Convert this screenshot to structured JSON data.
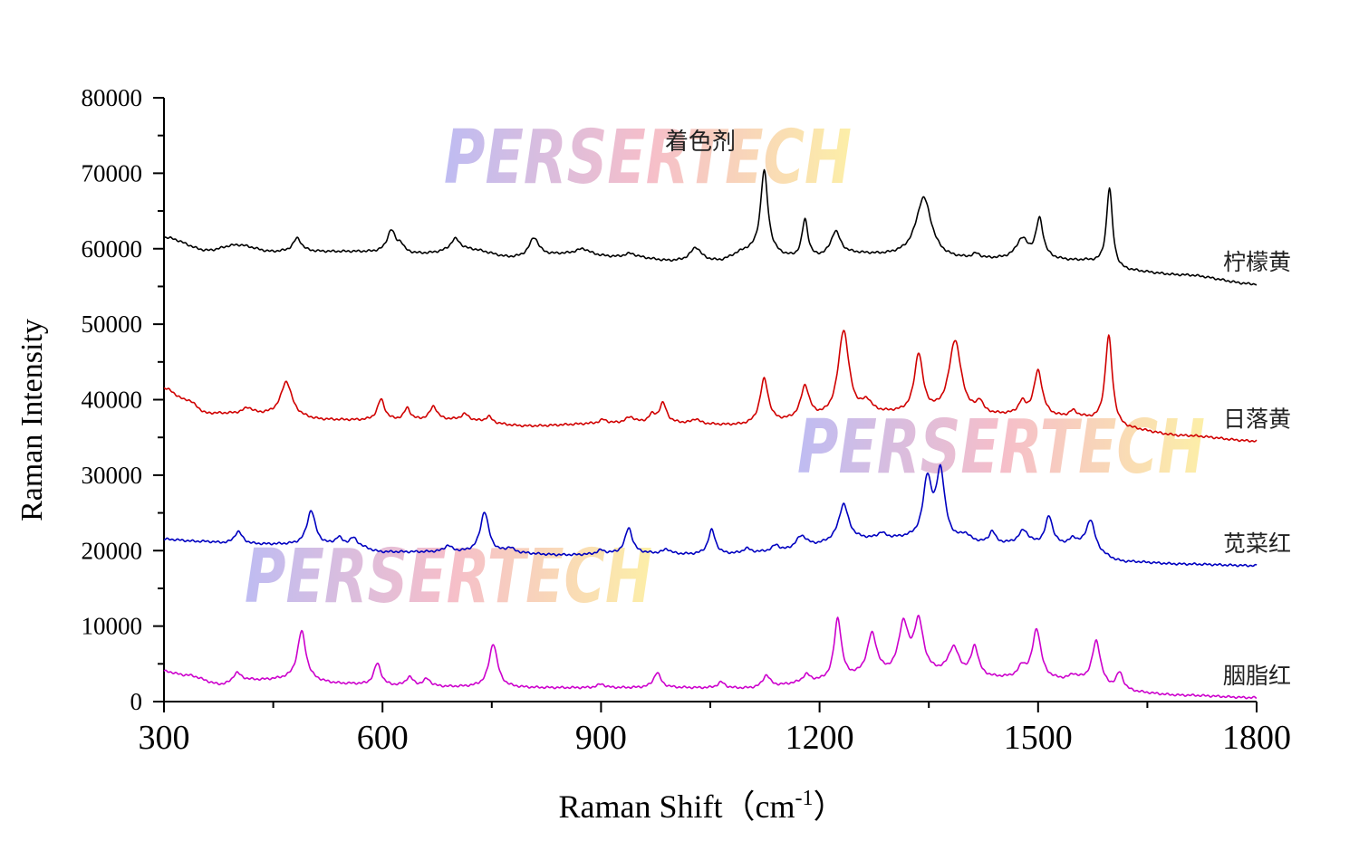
{
  "chart_data": {
    "type": "line",
    "title": "着色剂",
    "xlabel": "Raman Shift（cm",
    "xlabel_sup": "-1",
    "xlabel_close": "）",
    "ylabel": "Raman Intensity",
    "xlim": [
      300,
      1800
    ],
    "ylim": [
      0,
      80000
    ],
    "x_ticks": [
      300,
      600,
      900,
      1200,
      1500,
      1800
    ],
    "x_tick_labels": [
      "300",
      "600",
      "900",
      "1200",
      "1500",
      "1800"
    ],
    "y_ticks": [
      0,
      10000,
      20000,
      30000,
      40000,
      50000,
      60000,
      70000,
      80000
    ],
    "y_tick_labels": [
      "0",
      "10000",
      "20000",
      "30000",
      "40000",
      "50000",
      "60000",
      "70000",
      "80000"
    ],
    "watermark_text": "PERSERTECH",
    "series": [
      {
        "name": "柠檬黄",
        "color": "#000000",
        "baseline": [
          [
            300,
            61500
          ],
          [
            360,
            59800
          ],
          [
            400,
            60500
          ],
          [
            450,
            59600
          ],
          [
            550,
            59600
          ],
          [
            650,
            59300
          ],
          [
            720,
            59800
          ],
          [
            780,
            58800
          ],
          [
            850,
            59200
          ],
          [
            950,
            58700
          ],
          [
            1000,
            58300
          ],
          [
            1060,
            58300
          ],
          [
            1100,
            59500
          ],
          [
            1180,
            58500
          ],
          [
            1250,
            59200
          ],
          [
            1300,
            59000
          ],
          [
            1380,
            58500
          ],
          [
            1500,
            58500
          ],
          [
            1560,
            58300
          ],
          [
            1620,
            57000
          ],
          [
            1700,
            56500
          ],
          [
            1800,
            55300
          ]
        ],
        "peaks": [
          [
            483,
            1800,
            7
          ],
          [
            612,
            3000,
            7
          ],
          [
            625,
            1000,
            5
          ],
          [
            700,
            1600,
            8
          ],
          [
            808,
            2500,
            8
          ],
          [
            875,
            800,
            12
          ],
          [
            940,
            600,
            10
          ],
          [
            1030,
            1800,
            9
          ],
          [
            1124,
            11000,
            6
          ],
          [
            1180,
            5200,
            5
          ],
          [
            1222,
            3200,
            8
          ],
          [
            1343,
            8000,
            13
          ],
          [
            1415,
            600,
            6
          ],
          [
            1478,
            2600,
            10
          ],
          [
            1502,
            5200,
            6
          ],
          [
            1598,
            10600,
            5
          ]
        ]
      },
      {
        "name": "日落黄",
        "color": "#d00000",
        "baseline": [
          [
            300,
            41500
          ],
          [
            330,
            40000
          ],
          [
            360,
            38200
          ],
          [
            450,
            38000
          ],
          [
            520,
            37300
          ],
          [
            600,
            37200
          ],
          [
            700,
            37300
          ],
          [
            800,
            36500
          ],
          [
            900,
            36800
          ],
          [
            1000,
            36800
          ],
          [
            1100,
            36500
          ],
          [
            1200,
            37300
          ],
          [
            1300,
            38000
          ],
          [
            1450,
            37800
          ],
          [
            1550,
            37500
          ],
          [
            1620,
            36000
          ],
          [
            1700,
            35200
          ],
          [
            1800,
            34500
          ]
        ],
        "peaks": [
          [
            415,
            800,
            8
          ],
          [
            468,
            4500,
            9
          ],
          [
            598,
            2800,
            6
          ],
          [
            634,
            1600,
            5
          ],
          [
            670,
            1800,
            6
          ],
          [
            713,
            800,
            6
          ],
          [
            746,
            800,
            5
          ],
          [
            903,
            500,
            6
          ],
          [
            940,
            800,
            8
          ],
          [
            985,
            2600,
            6
          ],
          [
            970,
            1000,
            6
          ],
          [
            1030,
            600,
            6
          ],
          [
            1124,
            6000,
            7
          ],
          [
            1180,
            4300,
            7
          ],
          [
            1233,
            11500,
            9
          ],
          [
            1265,
            1500,
            8
          ],
          [
            1336,
            7800,
            7
          ],
          [
            1386,
            9800,
            10
          ],
          [
            1420,
            1500,
            5
          ],
          [
            1478,
            1600,
            6
          ],
          [
            1500,
            6000,
            7
          ],
          [
            1548,
            800,
            6
          ],
          [
            1597,
            12000,
            6
          ]
        ]
      },
      {
        "name": "苋菜红",
        "color": "#0000c0",
        "baseline": [
          [
            300,
            21500
          ],
          [
            350,
            21200
          ],
          [
            400,
            20800
          ],
          [
            450,
            20800
          ],
          [
            500,
            20700
          ],
          [
            560,
            20600
          ],
          [
            600,
            19800
          ],
          [
            680,
            19800
          ],
          [
            760,
            19700
          ],
          [
            850,
            19400
          ],
          [
            950,
            19600
          ],
          [
            1050,
            19400
          ],
          [
            1150,
            19800
          ],
          [
            1250,
            21400
          ],
          [
            1300,
            21500
          ],
          [
            1450,
            20800
          ],
          [
            1550,
            20600
          ],
          [
            1620,
            18500
          ],
          [
            1700,
            18200
          ],
          [
            1800,
            18000
          ]
        ],
        "peaks": [
          [
            402,
            1700,
            7
          ],
          [
            502,
            4600,
            7
          ],
          [
            540,
            1000,
            6
          ],
          [
            560,
            1000,
            6
          ],
          [
            690,
            800,
            6
          ],
          [
            740,
            5400,
            7
          ],
          [
            775,
            600,
            6
          ],
          [
            900,
            500,
            6
          ],
          [
            938,
            3400,
            6
          ],
          [
            990,
            600,
            6
          ],
          [
            1052,
            3300,
            6
          ],
          [
            1100,
            600,
            6
          ],
          [
            1140,
            800,
            6
          ],
          [
            1175,
            1800,
            10
          ],
          [
            1233,
            4800,
            8
          ],
          [
            1285,
            700,
            6
          ],
          [
            1348,
            7800,
            7
          ],
          [
            1366,
            9000,
            7
          ],
          [
            1400,
            900,
            8
          ],
          [
            1437,
            1600,
            5
          ],
          [
            1480,
            1800,
            8
          ],
          [
            1515,
            3800,
            6
          ],
          [
            1548,
            800,
            6
          ],
          [
            1572,
            3900,
            7
          ]
        ]
      },
      {
        "name": "胭脂红",
        "color": "#cc00cc",
        "baseline": [
          [
            300,
            4000
          ],
          [
            330,
            3500
          ],
          [
            380,
            2200
          ],
          [
            420,
            2800
          ],
          [
            470,
            2900
          ],
          [
            550,
            2300
          ],
          [
            600,
            2000
          ],
          [
            700,
            1900
          ],
          [
            800,
            1800
          ],
          [
            900,
            1800
          ],
          [
            1000,
            1800
          ],
          [
            1100,
            1700
          ],
          [
            1200,
            2500
          ],
          [
            1280,
            3200
          ],
          [
            1350,
            3400
          ],
          [
            1450,
            3000
          ],
          [
            1550,
            2700
          ],
          [
            1620,
            1200
          ],
          [
            1700,
            800
          ],
          [
            1800,
            500
          ]
        ],
        "peaks": [
          [
            400,
            1300,
            7
          ],
          [
            489,
            6500,
            7
          ],
          [
            593,
            3000,
            6
          ],
          [
            637,
            1200,
            6
          ],
          [
            661,
            1000,
            6
          ],
          [
            752,
            5800,
            7
          ],
          [
            900,
            500,
            6
          ],
          [
            977,
            2000,
            6
          ],
          [
            1065,
            800,
            6
          ],
          [
            1127,
            1600,
            6
          ],
          [
            1182,
            1000,
            6
          ],
          [
            1225,
            8200,
            6
          ],
          [
            1272,
            5500,
            8
          ],
          [
            1315,
            6500,
            8
          ],
          [
            1336,
            6800,
            8
          ],
          [
            1384,
            3600,
            9
          ],
          [
            1413,
            3900,
            6
          ],
          [
            1478,
            1400,
            6
          ],
          [
            1498,
            6600,
            7
          ],
          [
            1548,
            600,
            6
          ],
          [
            1580,
            5800,
            7
          ],
          [
            1612,
            2400,
            6
          ]
        ]
      }
    ]
  }
}
